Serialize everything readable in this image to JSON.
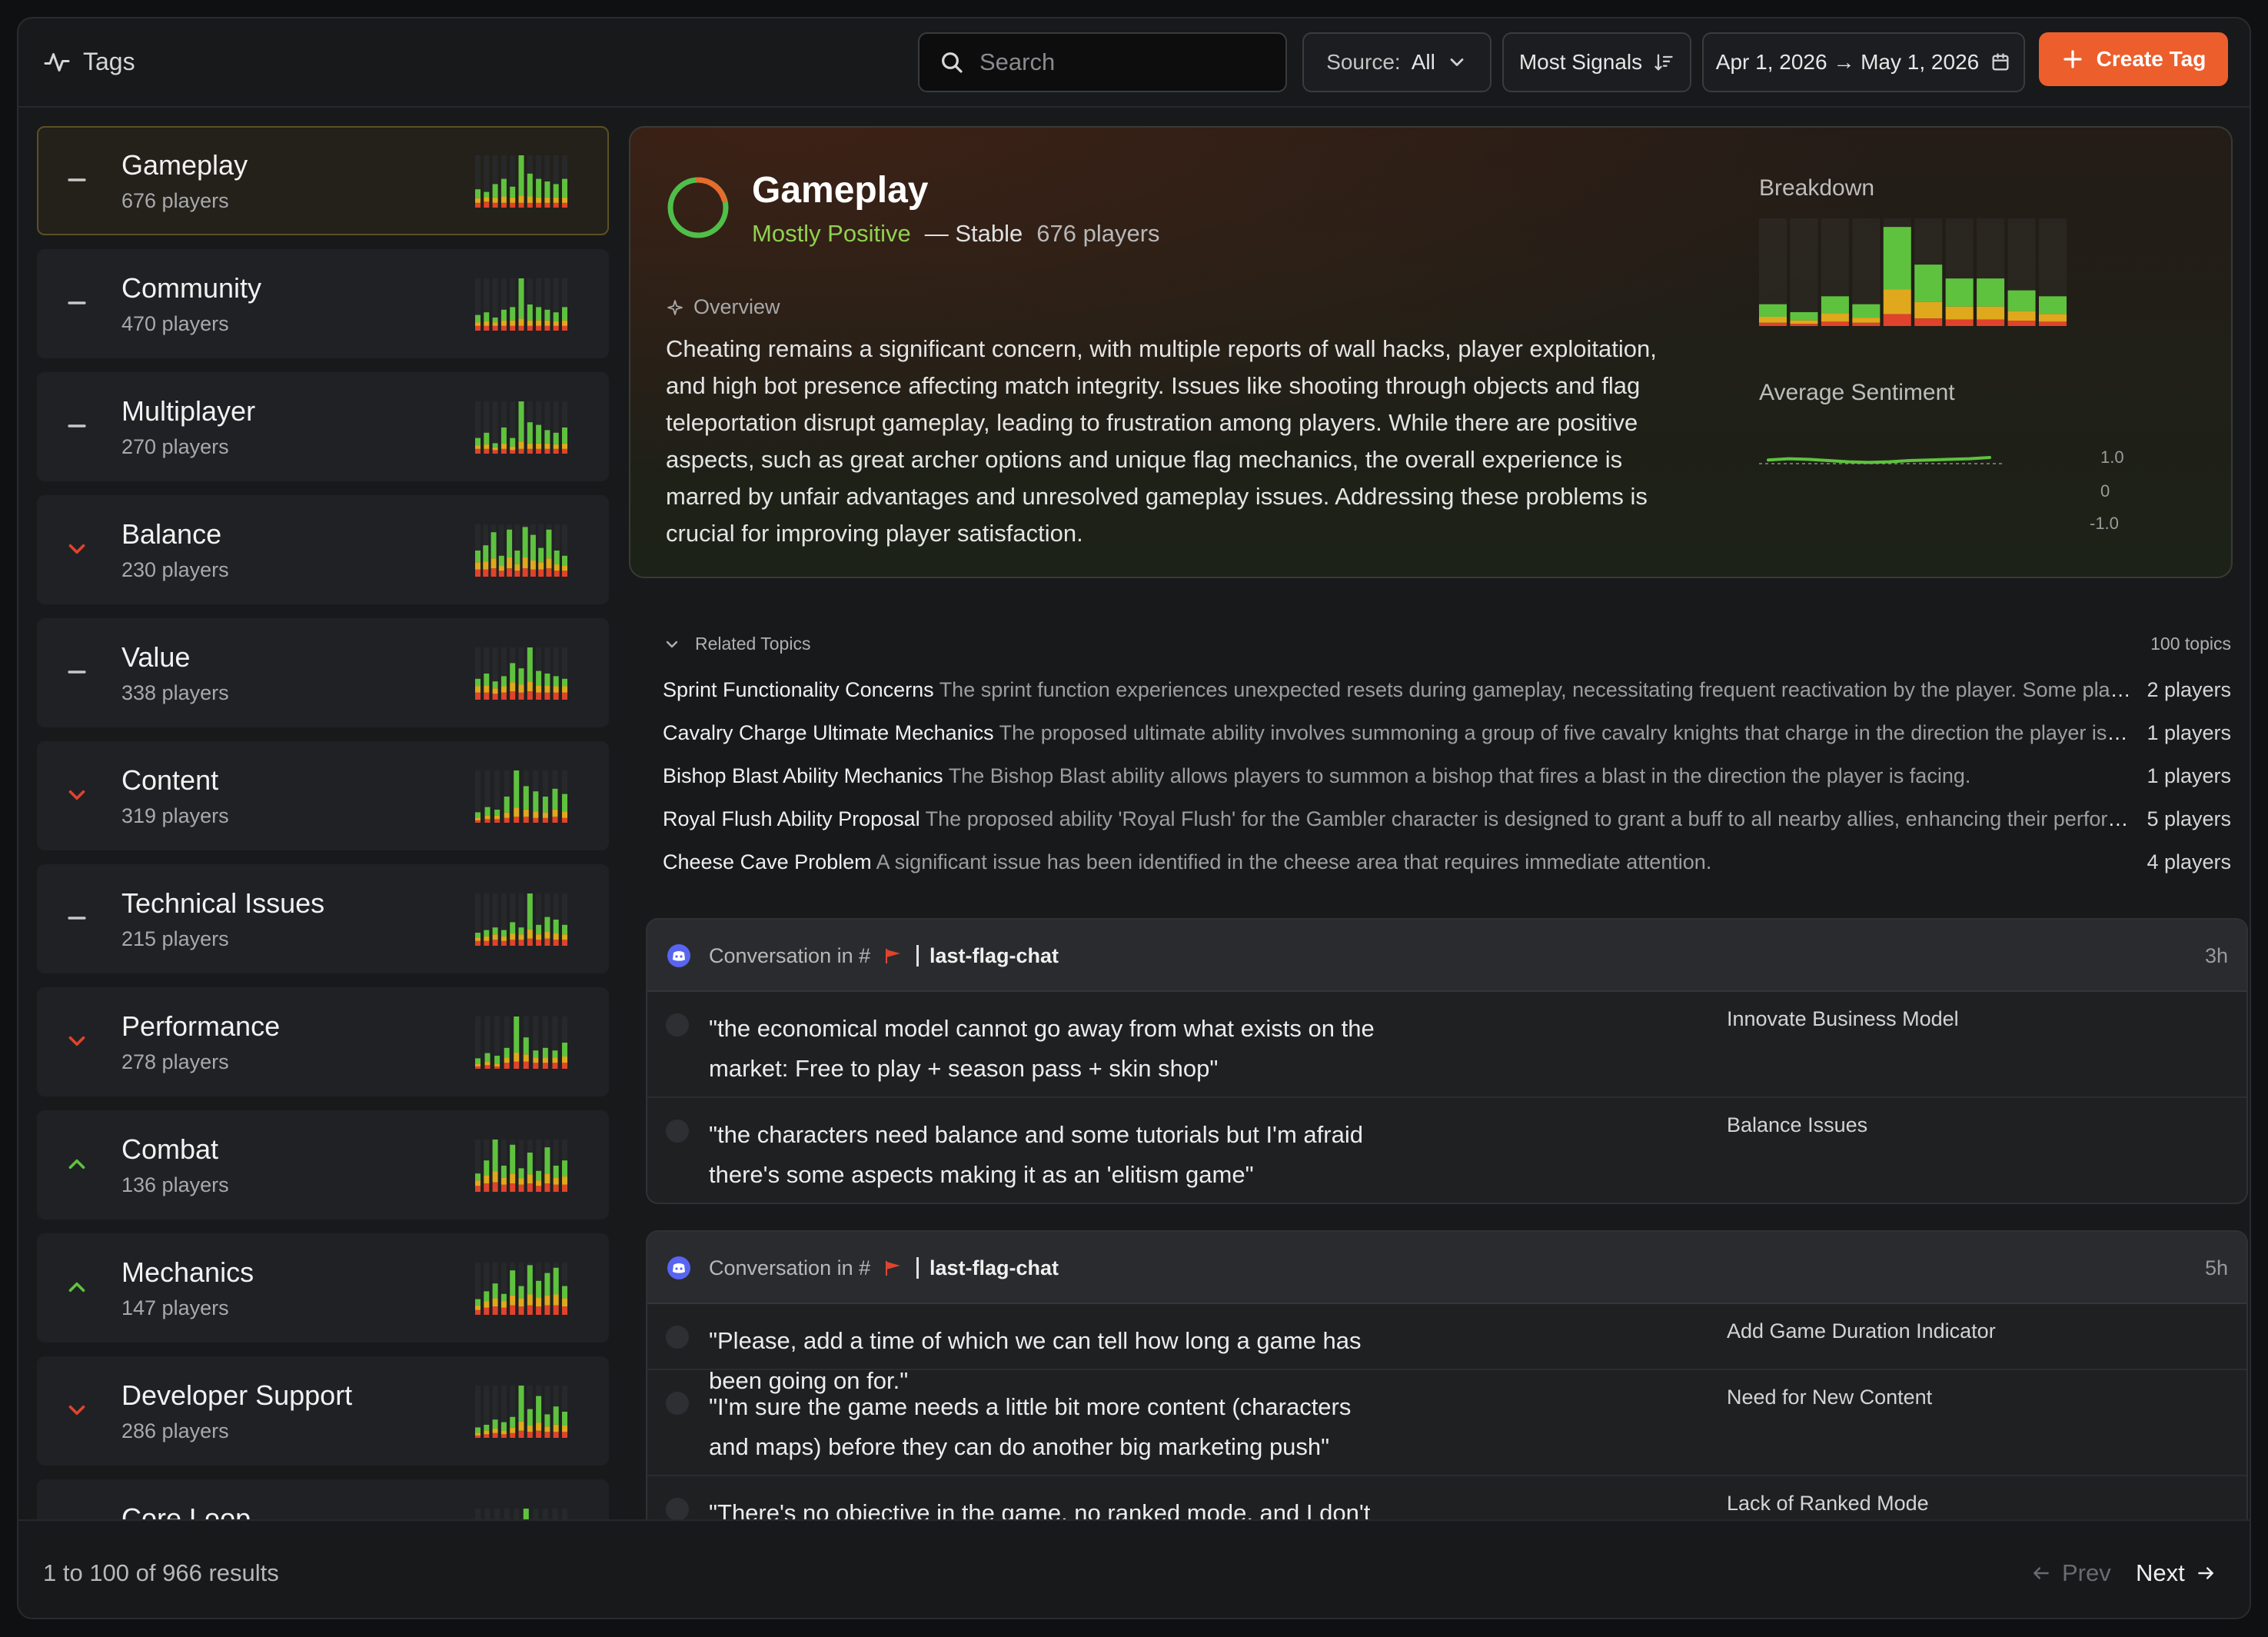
{
  "header": {
    "title": "Tags",
    "search_placeholder": "Search",
    "source_label": "Source:",
    "source_value": "All",
    "sort_label": "Most Signals",
    "date_range": "Apr 1, 2026 → May 1, 2026",
    "create_label": "Create Tag"
  },
  "tags": [
    {
      "name": "Gameplay",
      "count": "676 players",
      "trend": "flat",
      "selected": true,
      "bars": [
        [
          0.35,
          0.25,
          0.2
        ],
        [
          0.3,
          0.25,
          0.25
        ],
        [
          0.45,
          0.3,
          0.2
        ],
        [
          0.55,
          0.35,
          0.2
        ],
        [
          0.4,
          0.3,
          0.2
        ],
        [
          1.0,
          0.4,
          0.2
        ],
        [
          0.65,
          0.35,
          0.2
        ],
        [
          0.55,
          0.3,
          0.2
        ],
        [
          0.5,
          0.3,
          0.2
        ],
        [
          0.45,
          0.3,
          0.2
        ],
        [
          0.55,
          0.3,
          0.2
        ]
      ]
    },
    {
      "name": "Community",
      "count": "470 players",
      "trend": "flat",
      "bars": [
        [
          0.3,
          0.2,
          0.2
        ],
        [
          0.35,
          0.25,
          0.2
        ],
        [
          0.25,
          0.2,
          0.2
        ],
        [
          0.4,
          0.3,
          0.2
        ],
        [
          0.45,
          0.3,
          0.2
        ],
        [
          1.0,
          0.4,
          0.2
        ],
        [
          0.5,
          0.3,
          0.2
        ],
        [
          0.45,
          0.3,
          0.2
        ],
        [
          0.4,
          0.3,
          0.2
        ],
        [
          0.35,
          0.25,
          0.2
        ],
        [
          0.45,
          0.3,
          0.2
        ]
      ]
    },
    {
      "name": "Multiplayer",
      "count": "270 players",
      "trend": "flat",
      "bars": [
        [
          0.3,
          0.2,
          0.2
        ],
        [
          0.4,
          0.25,
          0.2
        ],
        [
          0.2,
          0.15,
          0.15
        ],
        [
          0.5,
          0.3,
          0.2
        ],
        [
          0.3,
          0.2,
          0.15
        ],
        [
          1.0,
          0.4,
          0.2
        ],
        [
          0.6,
          0.3,
          0.2
        ],
        [
          0.55,
          0.3,
          0.2
        ],
        [
          0.45,
          0.3,
          0.2
        ],
        [
          0.4,
          0.25,
          0.2
        ],
        [
          0.5,
          0.3,
          0.2
        ]
      ]
    },
    {
      "name": "Balance",
      "count": "230 players",
      "trend": "down",
      "bars": [
        [
          0.5,
          0.4,
          0.3
        ],
        [
          0.6,
          0.45,
          0.3
        ],
        [
          0.85,
          0.55,
          0.35
        ],
        [
          0.4,
          0.3,
          0.25
        ],
        [
          0.9,
          0.6,
          0.35
        ],
        [
          0.5,
          0.35,
          0.25
        ],
        [
          0.95,
          0.6,
          0.35
        ],
        [
          0.8,
          0.5,
          0.3
        ],
        [
          0.55,
          0.4,
          0.3
        ],
        [
          0.9,
          0.55,
          0.35
        ],
        [
          0.5,
          0.35,
          0.25
        ],
        [
          0.4,
          0.3,
          0.25
        ]
      ]
    },
    {
      "name": "Value",
      "count": "338 players",
      "trend": "flat",
      "bars": [
        [
          0.4,
          0.35,
          0.3
        ],
        [
          0.5,
          0.4,
          0.3
        ],
        [
          0.35,
          0.3,
          0.25
        ],
        [
          0.45,
          0.35,
          0.3
        ],
        [
          0.7,
          0.5,
          0.35
        ],
        [
          0.6,
          0.45,
          0.3
        ],
        [
          1.0,
          0.55,
          0.35
        ],
        [
          0.55,
          0.4,
          0.3
        ],
        [
          0.5,
          0.4,
          0.3
        ],
        [
          0.45,
          0.35,
          0.3
        ],
        [
          0.4,
          0.35,
          0.3
        ]
      ]
    },
    {
      "name": "Content",
      "count": "319 players",
      "trend": "down",
      "bars": [
        [
          0.2,
          0.15,
          0.1
        ],
        [
          0.3,
          0.2,
          0.15
        ],
        [
          0.25,
          0.2,
          0.15
        ],
        [
          0.5,
          0.3,
          0.2
        ],
        [
          1.0,
          0.5,
          0.25
        ],
        [
          0.7,
          0.4,
          0.25
        ],
        [
          0.6,
          0.35,
          0.2
        ],
        [
          0.5,
          0.3,
          0.2
        ],
        [
          0.65,
          0.4,
          0.25
        ],
        [
          0.55,
          0.35,
          0.2
        ]
      ]
    },
    {
      "name": "Technical Issues",
      "count": "215 players",
      "trend": "flat",
      "bars": [
        [
          0.25,
          0.2,
          0.2
        ],
        [
          0.3,
          0.25,
          0.2
        ],
        [
          0.35,
          0.3,
          0.25
        ],
        [
          0.3,
          0.25,
          0.2
        ],
        [
          0.45,
          0.35,
          0.25
        ],
        [
          0.35,
          0.3,
          0.25
        ],
        [
          1.0,
          0.5,
          0.3
        ],
        [
          0.4,
          0.3,
          0.25
        ],
        [
          0.55,
          0.4,
          0.3
        ],
        [
          0.5,
          0.35,
          0.25
        ],
        [
          0.4,
          0.3,
          0.25
        ]
      ]
    },
    {
      "name": "Performance",
      "count": "278 players",
      "trend": "down",
      "bars": [
        [
          0.2,
          0.15,
          0.1
        ],
        [
          0.3,
          0.2,
          0.15
        ],
        [
          0.25,
          0.15,
          0.1
        ],
        [
          0.4,
          0.3,
          0.25
        ],
        [
          1.0,
          0.5,
          0.3
        ],
        [
          0.6,
          0.4,
          0.3
        ],
        [
          0.35,
          0.3,
          0.25
        ],
        [
          0.4,
          0.3,
          0.25
        ],
        [
          0.35,
          0.3,
          0.25
        ],
        [
          0.5,
          0.35,
          0.25
        ]
      ]
    },
    {
      "name": "Combat",
      "count": "136 players",
      "trend": "up",
      "bars": [
        [
          0.35,
          0.3,
          0.25
        ],
        [
          0.6,
          0.45,
          0.35
        ],
        [
          1.0,
          0.6,
          0.4
        ],
        [
          0.5,
          0.4,
          0.3
        ],
        [
          0.9,
          0.55,
          0.35
        ],
        [
          0.45,
          0.35,
          0.3
        ],
        [
          0.75,
          0.5,
          0.35
        ],
        [
          0.4,
          0.3,
          0.25
        ],
        [
          0.85,
          0.55,
          0.35
        ],
        [
          0.5,
          0.4,
          0.3
        ],
        [
          0.6,
          0.45,
          0.3
        ]
      ]
    },
    {
      "name": "Mechanics",
      "count": "147 players",
      "trend": "up",
      "bars": [
        [
          0.3,
          0.25,
          0.2
        ],
        [
          0.45,
          0.35,
          0.3
        ],
        [
          0.6,
          0.45,
          0.35
        ],
        [
          0.4,
          0.35,
          0.3
        ],
        [
          0.85,
          0.55,
          0.4
        ],
        [
          0.55,
          0.45,
          0.35
        ],
        [
          0.95,
          0.6,
          0.4
        ],
        [
          0.65,
          0.5,
          0.35
        ],
        [
          0.8,
          0.55,
          0.4
        ],
        [
          0.9,
          0.6,
          0.4
        ],
        [
          0.55,
          0.45,
          0.35
        ]
      ]
    },
    {
      "name": "Developer Support",
      "count": "286 players",
      "trend": "down",
      "bars": [
        [
          0.2,
          0.15,
          0.1
        ],
        [
          0.25,
          0.2,
          0.15
        ],
        [
          0.35,
          0.25,
          0.2
        ],
        [
          0.3,
          0.2,
          0.15
        ],
        [
          0.4,
          0.3,
          0.2
        ],
        [
          1.0,
          0.5,
          0.3
        ],
        [
          0.55,
          0.35,
          0.25
        ],
        [
          0.8,
          0.45,
          0.3
        ],
        [
          0.45,
          0.3,
          0.25
        ],
        [
          0.6,
          0.4,
          0.25
        ],
        [
          0.5,
          0.35,
          0.25
        ]
      ]
    },
    {
      "name": "Core Loop",
      "count": "",
      "trend": "flat",
      "bars": [
        [
          0.2,
          0.15,
          0.1
        ],
        [
          0.3,
          0.2,
          0.15
        ],
        [
          0.25,
          0.15,
          0.1
        ],
        [
          0.4,
          0.3,
          0.2
        ],
        [
          0.35,
          0.25,
          0.2
        ],
        [
          1.0,
          0.5,
          0.3
        ],
        [
          0.5,
          0.35,
          0.25
        ],
        [
          0.45,
          0.3,
          0.2
        ],
        [
          0.4,
          0.3,
          0.2
        ],
        [
          0.35,
          0.25,
          0.2
        ]
      ]
    }
  ],
  "detail": {
    "title": "Gameplay",
    "sentiment": "Mostly Positive",
    "trend_label": "Stable",
    "players": "676 players",
    "overview_label": "Overview",
    "overview": "Cheating remains a significant concern, with multiple reports of wall hacks, player exploitation, and high bot presence affecting match integrity. Issues like shooting through objects and flag teleportation disrupt gameplay, leading to frustration among players. While there are positive aspects, such as great archer options and unique flag mechanics, the overall experience is marred by unfair advantages and unresolved gameplay issues. Addressing these problems is crucial for improving player satisfaction.",
    "breakdown_label": "Breakdown",
    "breakdown_bars": [
      [
        0.22,
        0.14,
        0.06
      ],
      [
        0.14,
        0.08,
        0.04
      ],
      [
        0.3,
        0.2,
        0.08
      ],
      [
        0.22,
        0.12,
        0.06
      ],
      [
        1.0,
        0.58,
        0.22
      ],
      [
        0.62,
        0.38,
        0.14
      ],
      [
        0.48,
        0.3,
        0.12
      ],
      [
        0.48,
        0.3,
        0.12
      ],
      [
        0.36,
        0.22,
        0.1
      ],
      [
        0.3,
        0.18,
        0.08
      ]
    ],
    "avg_label": "Average Sentiment",
    "avg_axis": [
      "1.0",
      "0",
      "-1.0"
    ],
    "avg_series": [
      0.12,
      0.16,
      0.14,
      0.1,
      0.06,
      0.04,
      0.06,
      0.1,
      0.12,
      0.14,
      0.16,
      0.2
    ],
    "colors": {
      "positive": "#5fc23f",
      "neutral": "#e0a81c",
      "negative": "#e0432c",
      "ring_green": "#4fbf4a",
      "ring_orange": "#e86a2c"
    }
  },
  "related": {
    "label": "Related Topics",
    "count": "100 topics",
    "topics": [
      {
        "name": "Sprint Functionality Concerns",
        "desc": "The sprint function experiences unexpected resets during gameplay, necessitating frequent reactivation by the player. Some players have reported additional issues with sprinting",
        "count": "2 players"
      },
      {
        "name": "Cavalry Charge Ultimate Mechanics",
        "desc": "The proposed ultimate ability involves summoning a group of five cavalry knights that charge in the direction the player is facing",
        "count": "1 players"
      },
      {
        "name": "Bishop Blast Ability Mechanics",
        "desc": "The Bishop Blast ability allows players to summon a bishop that fires a blast in the direction the player is facing.",
        "count": "1 players"
      },
      {
        "name": "Royal Flush Ability Proposal",
        "desc": "The proposed ability 'Royal Flush' for the Gambler character is designed to grant a buff to all nearby allies, enhancing their performance",
        "count": "5 players"
      },
      {
        "name": "Cheese Cave Problem",
        "desc": "A significant issue has been identified in the cheese area that requires immediate attention.",
        "count": "4 players"
      }
    ]
  },
  "conversations": [
    {
      "prefix": "Conversation in #",
      "channel": "last-flag-chat",
      "time": "3h",
      "messages": [
        {
          "quote": "\"the economical model cannot go away from what exists on the market: Free to play + season pass + skin shop\"",
          "label": "Innovate Business Model"
        },
        {
          "quote": "\"the characters need balance and some tutorials but I'm afraid there's some aspects making it as an 'elitism game\"",
          "label": "Balance Issues"
        }
      ]
    },
    {
      "prefix": "Conversation in #",
      "channel": "last-flag-chat",
      "time": "5h",
      "messages": [
        {
          "quote": "\"Please, add a time of which we can tell how long a game has been going on for.\"",
          "label": "Add Game Duration Indicator"
        },
        {
          "quote": "\"I'm sure the game needs a little bit more content (characters and maps) before they can do another big marketing push\"",
          "label": "Need for New Content"
        },
        {
          "quote": "\"There's no objective in the game, no ranked mode, and I don't know if",
          "label": "Lack of Ranked Mode"
        }
      ]
    }
  ],
  "footer": {
    "results": "1 to 100 of 966 results",
    "prev": "Prev",
    "next": "Next"
  }
}
